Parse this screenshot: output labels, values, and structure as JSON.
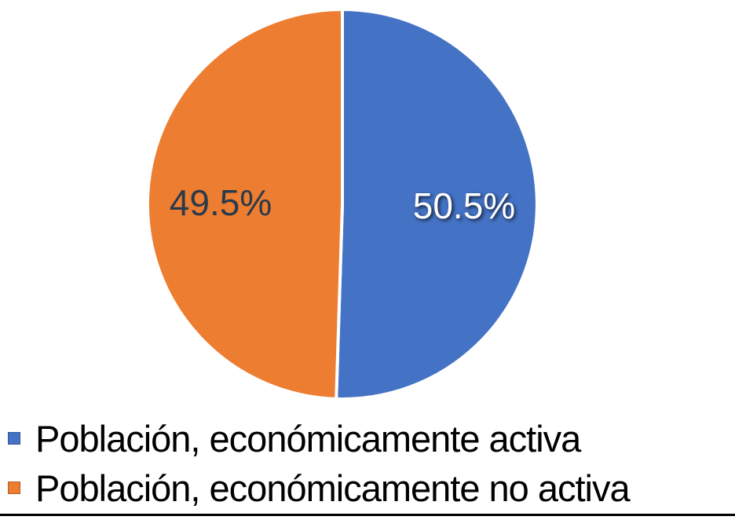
{
  "chart_data": {
    "type": "pie",
    "title": "",
    "categories": [
      "Población, económicamente activa",
      "Población, económicamente no activa"
    ],
    "values": [
      50.5,
      49.5
    ],
    "labels": [
      "50.5%",
      "49.5%"
    ],
    "colors": [
      "#4472C4",
      "#ED7D31"
    ],
    "label_colors": [
      "#FFFFFF",
      "#2B3A4A"
    ],
    "slice_border_color": "#FFFFFF",
    "start_angle_deg": 0,
    "direction": "clockwise",
    "legend_position": "bottom-left",
    "grid": false
  },
  "divider": {
    "color": "#000000"
  }
}
